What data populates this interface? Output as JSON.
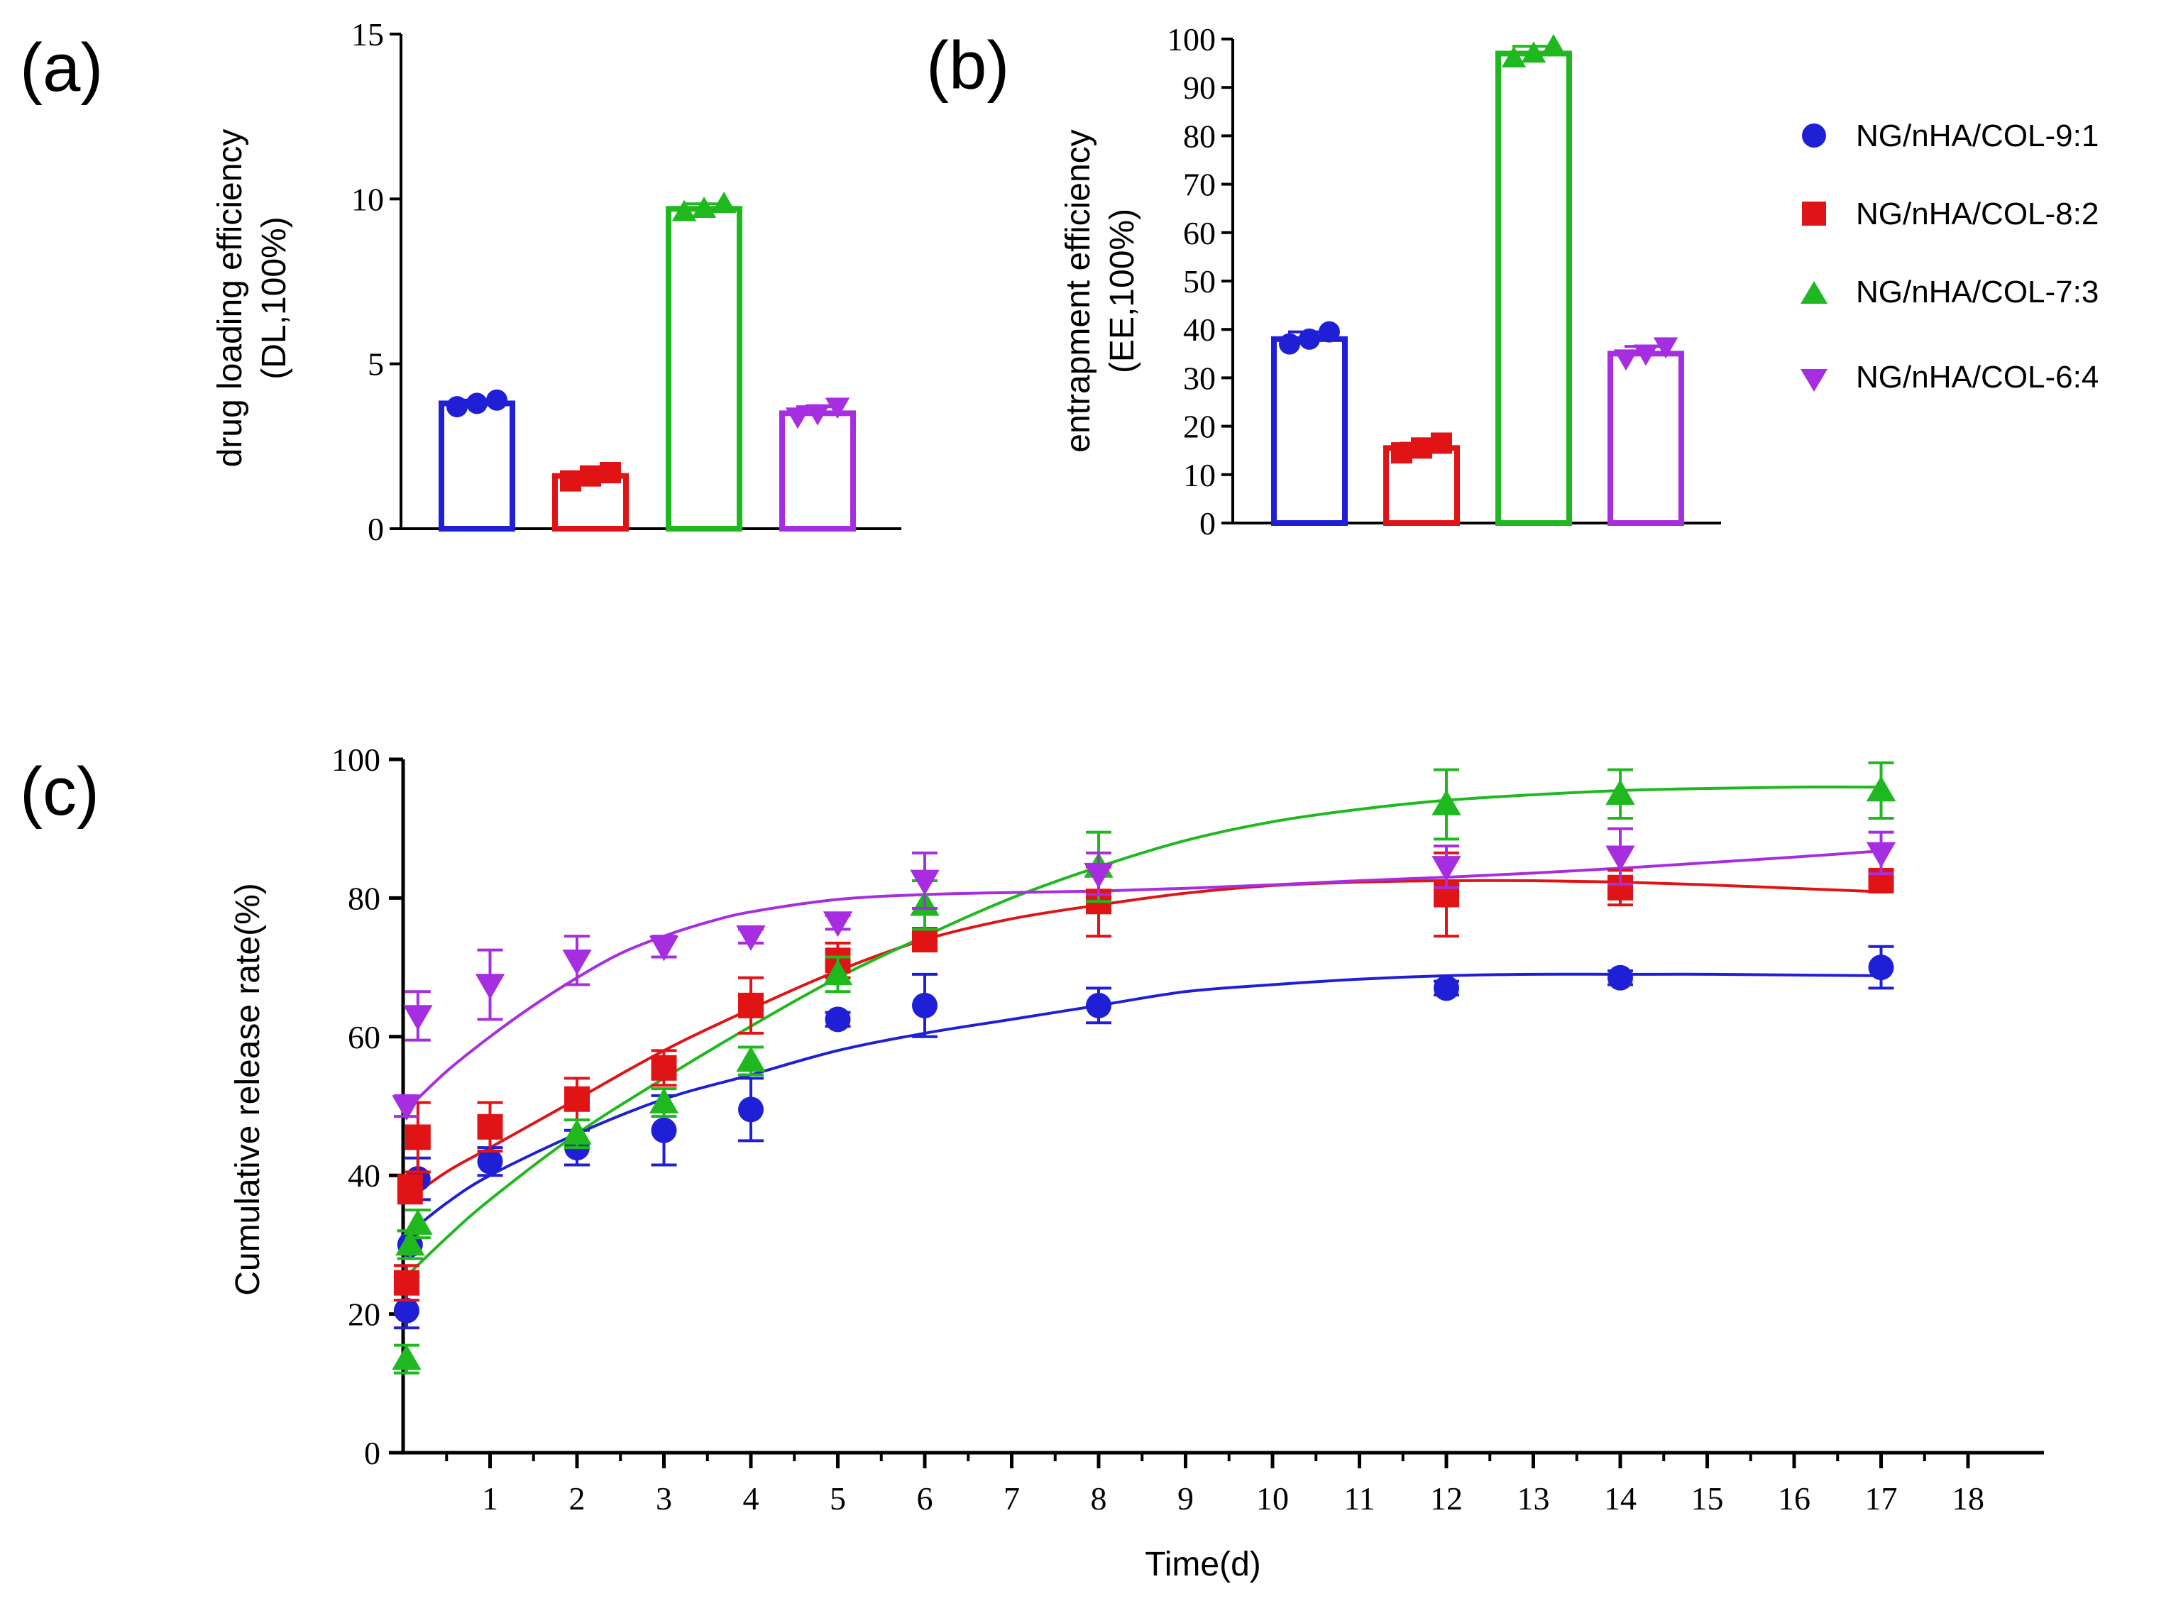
{
  "colors": {
    "blue": "#1f1fd6",
    "red": "#e01414",
    "green": "#1fb81f",
    "purple": "#a62ee0",
    "axis": "#000000"
  },
  "legend": [
    {
      "label": "NG/nHA/COL-9:1",
      "marker": "circle",
      "color": "#1f1fd6"
    },
    {
      "label": "NG/nHA/COL-8:2",
      "marker": "square",
      "color": "#e01414"
    },
    {
      "label": "NG/nHA/COL-7:3",
      "marker": "triangle-up",
      "color": "#1fb81f"
    },
    {
      "label": "NG/nHA/COL-6:4",
      "marker": "triangle-down",
      "color": "#a62ee0"
    }
  ],
  "chart_data": [
    {
      "panel_label": "(a)",
      "type": "bar",
      "ylabel_line1": "drug loading efficiency",
      "ylabel_line2": "(DL,100%)",
      "ylim": [
        0,
        15
      ],
      "yticks": [
        0,
        5,
        10,
        15
      ],
      "categories": [
        "NG/nHA/COL-9:1",
        "NG/nHA/COL-8:2",
        "NG/nHA/COL-7:3",
        "NG/nHA/COL-6:4"
      ],
      "values": [
        3.8,
        1.6,
        9.7,
        3.5
      ],
      "points": [
        [
          3.7,
          3.8,
          3.9
        ],
        [
          1.45,
          1.6,
          1.7
        ],
        [
          9.6,
          9.7,
          9.85
        ],
        [
          3.4,
          3.5,
          3.7
        ]
      ]
    },
    {
      "panel_label": "(b)",
      "type": "bar",
      "ylabel_line1": "entrapment efficiency",
      "ylabel_line2": "(EE,100%)",
      "ylim": [
        0,
        100
      ],
      "yticks": [
        0,
        10,
        20,
        30,
        40,
        50,
        60,
        70,
        80,
        90,
        100
      ],
      "categories": [
        "NG/nHA/COL-9:1",
        "NG/nHA/COL-8:2",
        "NG/nHA/COL-7:3",
        "NG/nHA/COL-6:4"
      ],
      "values": [
        38,
        15.5,
        97,
        35
      ],
      "points": [
        [
          37,
          38,
          39.5
        ],
        [
          14.5,
          15.5,
          16.5
        ],
        [
          96,
          97,
          98.5
        ],
        [
          34,
          35,
          36.5
        ]
      ]
    },
    {
      "panel_label": "(c)",
      "type": "scatter",
      "xlabel": "Time(d)",
      "ylabel": "Cumulative release rate(%)",
      "xlim": [
        0,
        18
      ],
      "ylim": [
        0,
        100
      ],
      "xticks": [
        1,
        2,
        3,
        4,
        5,
        6,
        7,
        8,
        9,
        10,
        11,
        12,
        13,
        14,
        15,
        16,
        17,
        18
      ],
      "yticks": [
        0,
        20,
        40,
        60,
        80,
        100
      ],
      "series": [
        {
          "name": "NG/nHA/COL-9:1",
          "x": [
            0.04,
            0.08,
            0.17,
            1,
            2,
            3,
            4,
            5,
            6,
            8,
            12,
            14,
            17
          ],
          "y": [
            20.5,
            30,
            39.5,
            42,
            44,
            46.5,
            49.5,
            62.5,
            64.5,
            64.5,
            67,
            68.5,
            70
          ],
          "err": [
            2.5,
            2,
            3,
            2,
            2.5,
            5,
            4.5,
            1,
            4.5,
            2.5,
            1,
            1,
            3
          ],
          "fit_x": [
            0,
            0.5,
            1,
            2,
            3,
            4,
            5,
            6,
            7,
            8,
            9,
            10,
            11,
            12,
            13,
            14,
            15,
            16,
            17
          ],
          "fit_y": [
            31,
            36,
            40,
            46,
            51,
            54.5,
            58,
            60.5,
            62.5,
            64.5,
            66.5,
            67.5,
            68.3,
            68.8,
            69,
            69,
            69,
            68.9,
            68.8
          ]
        },
        {
          "name": "NG/nHA/COL-8:2",
          "x": [
            0.04,
            0.08,
            0.17,
            1,
            2,
            3,
            4,
            5,
            6,
            8,
            12,
            14,
            17
          ],
          "y": [
            24.5,
            38,
            45.5,
            47,
            51,
            55.5,
            64.5,
            71,
            74,
            79.5,
            80.5,
            81.5,
            82.5
          ],
          "err": [
            2.5,
            2,
            5,
            3.5,
            3,
            2.5,
            4,
            2.5,
            1.5,
            5,
            6,
            2.5,
            1.5
          ],
          "fit_x": [
            0,
            0.5,
            1,
            2,
            3,
            4,
            5,
            6,
            7,
            8,
            9,
            10,
            11,
            12,
            13,
            14,
            15,
            16,
            17
          ],
          "fit_y": [
            36,
            40.5,
            44,
            51,
            58,
            64,
            69.5,
            74,
            77,
            79,
            80.7,
            81.8,
            82.3,
            82.5,
            82.5,
            82.3,
            81.9,
            81.4,
            80.9
          ]
        },
        {
          "name": "NG/nHA/COL-7:3",
          "x": [
            0.04,
            0.08,
            0.17,
            2,
            3,
            4,
            5,
            6,
            8,
            12,
            14,
            17
          ],
          "y": [
            13.5,
            30,
            33,
            46,
            50.5,
            56.5,
            69,
            79,
            84.5,
            93.5,
            95,
            95.5
          ],
          "err": [
            2,
            2,
            2,
            2,
            2,
            2,
            2.5,
            3.5,
            5,
            5,
            3.5,
            4
          ],
          "fit_x": [
            0,
            0.5,
            1,
            2,
            3,
            4,
            5,
            6,
            7,
            8,
            9,
            10,
            11,
            12,
            13,
            14,
            15,
            16,
            17
          ],
          "fit_y": [
            25,
            31,
            36.5,
            46,
            54,
            61.5,
            68.5,
            74.5,
            80,
            84.5,
            88.3,
            91,
            92.8,
            94.1,
            94.9,
            95.5,
            95.8,
            96,
            96
          ]
        },
        {
          "name": "NG/nHA/COL-6:4",
          "x": [
            0.04,
            0.17,
            1,
            2,
            3,
            4,
            5,
            6,
            8,
            12,
            14,
            17
          ],
          "y": [
            50,
            63,
            67.5,
            71,
            73,
            74.5,
            76.5,
            82.5,
            83.5,
            84.5,
            86,
            86.5
          ],
          "err": [
            1.5,
            3.5,
            5,
            3.5,
            1.5,
            1,
            1,
            4,
            3,
            3,
            4,
            3
          ],
          "fit_x": [
            0,
            0.5,
            1,
            1.5,
            2,
            2.5,
            3,
            3.5,
            4,
            5,
            6,
            7,
            8,
            9,
            10,
            11,
            12,
            13,
            14,
            15,
            16,
            17
          ],
          "fit_y": [
            49,
            55,
            60,
            64.5,
            68.5,
            72,
            74.5,
            76.5,
            78,
            79.8,
            80.5,
            80.8,
            81,
            81.4,
            81.9,
            82.5,
            83,
            83.6,
            84.3,
            85.1,
            85.9,
            86.8
          ]
        }
      ]
    }
  ]
}
